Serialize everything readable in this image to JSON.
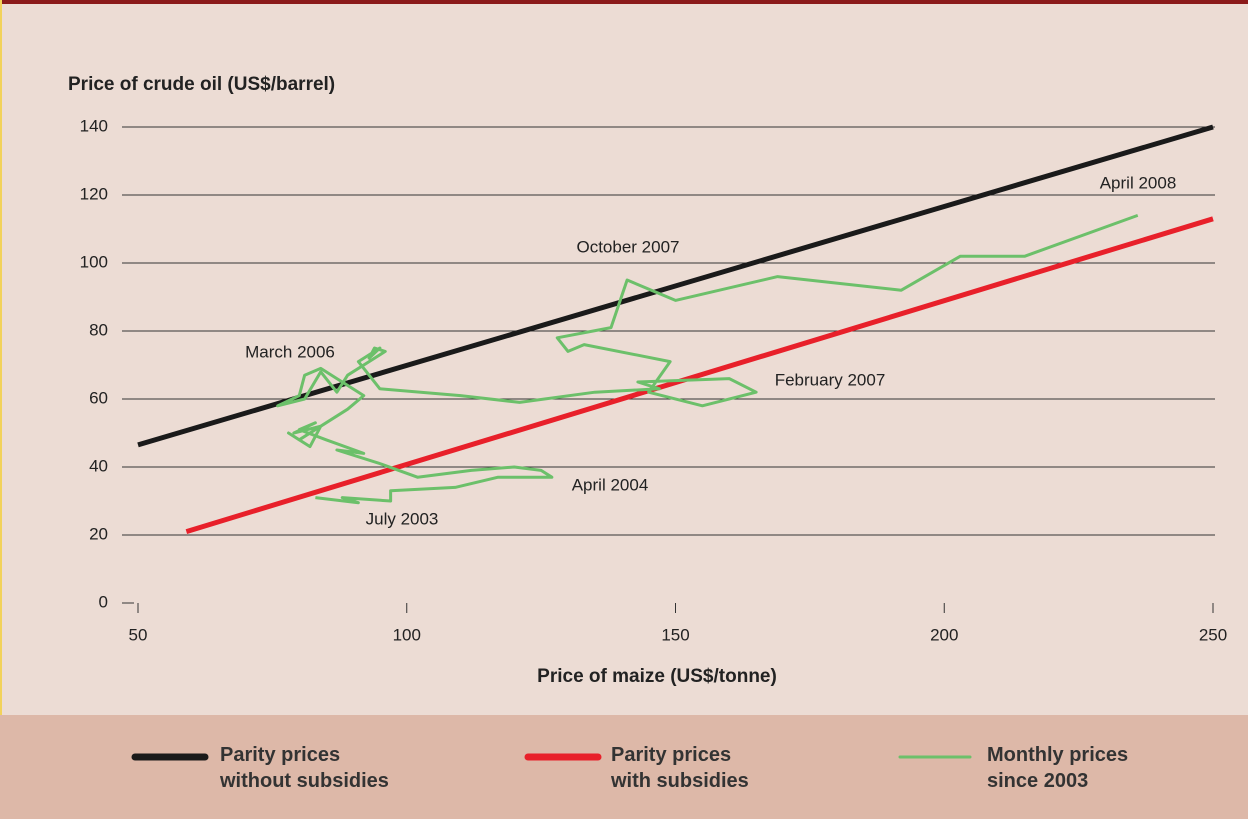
{
  "chart_data": {
    "type": "line",
    "y_label": "Price of crude oil (US$/barrel)",
    "x_label": "Price of maize (US$/tonne)",
    "xlim": [
      50,
      250
    ],
    "xticks": [
      50,
      100,
      150,
      200,
      250
    ],
    "ylim": [
      0,
      140
    ],
    "yticks": [
      0,
      20,
      40,
      60,
      80,
      100,
      120,
      140
    ],
    "grid": true,
    "series": [
      {
        "name": "Parity prices\nwithout subsidies",
        "color": "#1a1a1a",
        "x": [
          50,
          250
        ],
        "values": [
          46.5,
          140
        ]
      },
      {
        "name": "Parity prices\nwith subsidies",
        "color": "#e8202a",
        "x": [
          59,
          250
        ],
        "values": [
          21,
          113
        ]
      },
      {
        "name": "Monthly prices\nsince 2003",
        "color": "#6cc06a",
        "x": [
          83,
          91,
          88,
          97,
          97,
          109,
          117,
          124,
          127,
          125,
          120,
          112,
          102,
          95,
          87,
          92,
          85,
          80,
          83,
          79,
          84,
          87,
          80,
          78,
          82,
          84,
          89,
          92,
          87,
          84,
          81,
          80,
          76,
          81,
          84,
          87,
          89,
          93,
          96,
          94,
          93,
          95,
          91,
          95,
          110,
          121,
          135,
          147,
          143,
          160,
          165,
          155,
          145,
          149,
          133,
          130,
          128,
          138,
          141,
          150,
          169,
          192,
          203,
          215,
          236
        ],
        "values": [
          31,
          29.5,
          31,
          30,
          33,
          34,
          37,
          37,
          37,
          39,
          40,
          39,
          37,
          41,
          45,
          44,
          48,
          51,
          53,
          50,
          52,
          55,
          48,
          50,
          46,
          52,
          57,
          61,
          66,
          69,
          67,
          61,
          58,
          60,
          68,
          62,
          67,
          71,
          74,
          75,
          72,
          75,
          71,
          63,
          61,
          59,
          62,
          63,
          65,
          66,
          62,
          58,
          62,
          71,
          76,
          74,
          78,
          81,
          95,
          89,
          96,
          92,
          102,
          102,
          114
        ]
      }
    ],
    "annotations": [
      "April 2008",
      "October 2007",
      "March 2006",
      "February 2007",
      "April 2004",
      "July 2003"
    ]
  }
}
